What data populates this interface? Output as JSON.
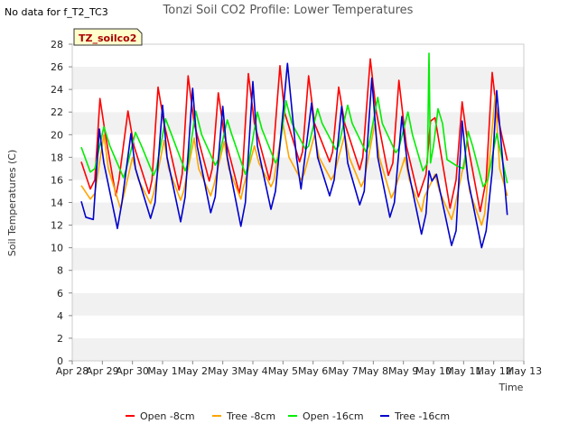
{
  "note": "No data for f_T2_TC3",
  "chart_data": {
    "type": "line",
    "title": "Tonzi Soil CO2 Profile: Lower Temperatures",
    "xlabel": "Time",
    "ylabel": "Soil Temperatures (C)",
    "site_label": "TZ_soilco2",
    "ylim": [
      0,
      28
    ],
    "yticks": [
      0,
      2,
      4,
      6,
      8,
      10,
      12,
      14,
      16,
      18,
      20,
      22,
      24,
      26,
      28
    ],
    "xlim": [
      0,
      15
    ],
    "xticks": [
      {
        "x": 0,
        "label": "Apr 28"
      },
      {
        "x": 1,
        "label": "Apr 29"
      },
      {
        "x": 2,
        "label": "Apr 30"
      },
      {
        "x": 3,
        "label": "May 1"
      },
      {
        "x": 4,
        "label": "May 2"
      },
      {
        "x": 5,
        "label": "May 3"
      },
      {
        "x": 6,
        "label": "May 4"
      },
      {
        "x": 7,
        "label": "May 5"
      },
      {
        "x": 8,
        "label": "May 6"
      },
      {
        "x": 9,
        "label": "May 7"
      },
      {
        "x": 10,
        "label": "May 8"
      },
      {
        "x": 11,
        "label": "May 9"
      },
      {
        "x": 12,
        "label": "May 10"
      },
      {
        "x": 13,
        "label": "May 11"
      },
      {
        "x": 14,
        "label": "May 12"
      },
      {
        "x": 15,
        "label": "May 13"
      }
    ],
    "grid": "horizontal bands",
    "legend_position": "bottom",
    "series": [
      {
        "name": "Open -8cm",
        "color": "#ff0000",
        "x": [
          0.3,
          0.6,
          0.75,
          0.92,
          1.1,
          1.45,
          1.55,
          1.85,
          2.05,
          2.55,
          2.65,
          2.85,
          3.05,
          3.55,
          3.65,
          3.85,
          4.05,
          4.55,
          4.65,
          4.85,
          5.05,
          5.55,
          5.65,
          5.85,
          6.05,
          6.55,
          6.65,
          6.9,
          7.05,
          7.55,
          7.65,
          7.85,
          8.05,
          8.55,
          8.65,
          8.85,
          9.05,
          9.55,
          9.65,
          9.9,
          10.1,
          10.5,
          10.65,
          10.85,
          11.1,
          11.5,
          11.75,
          11.9,
          12.05,
          12.55,
          12.75,
          12.95,
          13.15,
          13.55,
          13.75,
          13.95,
          14.1,
          14.45
        ],
        "y": [
          17.6,
          15.2,
          16.0,
          23.2,
          20.0,
          14.6,
          16.0,
          22.1,
          19.0,
          14.8,
          16.0,
          24.2,
          21.0,
          15.1,
          16.5,
          25.2,
          21.0,
          15.9,
          17.0,
          23.7,
          20.0,
          14.8,
          16.5,
          25.4,
          21.0,
          16.0,
          17.5,
          26.1,
          22.0,
          17.6,
          18.5,
          25.2,
          21.0,
          17.6,
          18.5,
          24.2,
          21.0,
          16.9,
          18.0,
          26.7,
          22.0,
          16.4,
          17.5,
          24.8,
          19.0,
          14.5,
          16.5,
          21.2,
          21.5,
          13.5,
          16.0,
          22.9,
          19.0,
          13.2,
          16.0,
          25.5,
          22.0,
          17.7
        ]
      },
      {
        "name": "Tree -8cm",
        "color": "#ffa500",
        "x": [
          0.3,
          0.6,
          0.75,
          1.05,
          1.2,
          1.6,
          1.7,
          2.0,
          2.2,
          2.6,
          2.7,
          3.05,
          3.2,
          3.6,
          3.7,
          4.05,
          4.2,
          4.6,
          4.7,
          5.05,
          5.2,
          5.6,
          5.7,
          6.05,
          6.2,
          6.6,
          6.7,
          7.0,
          7.2,
          7.6,
          7.7,
          8.05,
          8.2,
          8.6,
          8.7,
          9.05,
          9.2,
          9.6,
          9.7,
          10.05,
          10.2,
          10.6,
          10.7,
          11.05,
          11.2,
          11.6,
          11.7,
          12.05,
          12.2,
          12.6,
          12.7,
          13.05,
          13.2,
          13.6,
          13.7,
          14.05,
          14.2,
          14.45
        ],
        "y": [
          15.5,
          14.3,
          14.8,
          20.0,
          17.0,
          13.5,
          14.5,
          18.0,
          16.0,
          13.9,
          14.8,
          19.5,
          17.0,
          14.2,
          15.0,
          19.7,
          17.0,
          14.6,
          15.5,
          19.4,
          17.0,
          14.3,
          15.5,
          19.0,
          17.5,
          15.4,
          16.0,
          21.0,
          18.0,
          16.0,
          16.5,
          20.0,
          18.0,
          16.0,
          16.5,
          20.0,
          18.0,
          15.4,
          16.0,
          21.0,
          18.0,
          14.4,
          15.0,
          18.0,
          16.0,
          13.2,
          14.5,
          16.5,
          15.0,
          12.5,
          13.5,
          18.0,
          15.0,
          12.0,
          13.0,
          23.5,
          17.0,
          14.6
        ]
      },
      {
        "name": "Open -16cm",
        "color": "#00ee00",
        "x": [
          0.3,
          0.6,
          0.75,
          1.05,
          1.25,
          1.7,
          1.8,
          2.1,
          2.3,
          2.7,
          2.8,
          3.1,
          3.3,
          3.75,
          3.85,
          4.1,
          4.3,
          4.75,
          4.85,
          5.15,
          5.3,
          5.75,
          5.85,
          6.15,
          6.3,
          6.75,
          6.85,
          7.1,
          7.3,
          7.75,
          7.85,
          8.15,
          8.3,
          8.75,
          8.85,
          9.15,
          9.3,
          9.75,
          9.85,
          10.15,
          10.3,
          10.75,
          10.85,
          11.15,
          11.3,
          11.65,
          11.8,
          11.85,
          11.9,
          12.0,
          12.15,
          12.3,
          12.45,
          12.8,
          13.0,
          13.15,
          13.3,
          13.65,
          13.8,
          14.1,
          14.45
        ],
        "y": [
          18.9,
          16.7,
          17.0,
          20.7,
          19.0,
          16.2,
          17.0,
          20.2,
          19.0,
          16.4,
          17.0,
          21.4,
          20.0,
          16.8,
          17.5,
          22.1,
          20.0,
          17.3,
          17.8,
          21.3,
          20.0,
          16.5,
          17.3,
          22.0,
          20.5,
          17.5,
          18.0,
          23.0,
          21.0,
          18.7,
          19.0,
          22.3,
          21.0,
          18.7,
          19.0,
          22.6,
          21.0,
          18.5,
          19.0,
          23.3,
          21.0,
          18.4,
          18.8,
          22.0,
          20.0,
          16.8,
          17.5,
          27.2,
          17.5,
          19.0,
          22.3,
          21.0,
          17.8,
          17.2,
          17.0,
          20.3,
          19.0,
          15.4,
          16.0,
          20.1,
          15.7
        ]
      },
      {
        "name": "Tree -16cm",
        "color": "#0000cc",
        "x": [
          0.3,
          0.45,
          0.7,
          0.9,
          1.05,
          1.5,
          1.65,
          1.95,
          2.1,
          2.6,
          2.75,
          3.0,
          3.15,
          3.6,
          3.75,
          4.0,
          4.15,
          4.6,
          4.75,
          5.0,
          5.15,
          5.6,
          5.75,
          6.0,
          6.15,
          6.6,
          6.75,
          6.95,
          7.15,
          7.45,
          7.6,
          7.95,
          8.15,
          8.55,
          8.7,
          8.95,
          9.15,
          9.55,
          9.7,
          9.95,
          10.15,
          10.55,
          10.7,
          10.95,
          11.15,
          11.6,
          11.75,
          11.85,
          11.95,
          12.1,
          12.6,
          12.75,
          12.95,
          13.15,
          13.6,
          13.75,
          13.95,
          14.1,
          14.45
        ],
        "y": [
          14.1,
          12.7,
          12.5,
          20.5,
          17.5,
          11.7,
          14.0,
          20.1,
          17.0,
          12.6,
          14.0,
          22.6,
          18.0,
          12.3,
          14.5,
          24.1,
          19.0,
          13.1,
          14.5,
          22.5,
          18.0,
          11.9,
          14.0,
          24.7,
          19.0,
          13.4,
          15.0,
          20.5,
          26.3,
          18.0,
          15.2,
          22.8,
          18.0,
          14.6,
          16.0,
          22.5,
          17.5,
          13.8,
          15.0,
          25.0,
          18.0,
          12.7,
          14.0,
          21.6,
          17.0,
          11.2,
          13.0,
          16.8,
          15.9,
          16.5,
          10.2,
          11.5,
          21.2,
          16.0,
          10.0,
          11.5,
          16.8,
          23.9,
          12.9
        ]
      }
    ]
  }
}
